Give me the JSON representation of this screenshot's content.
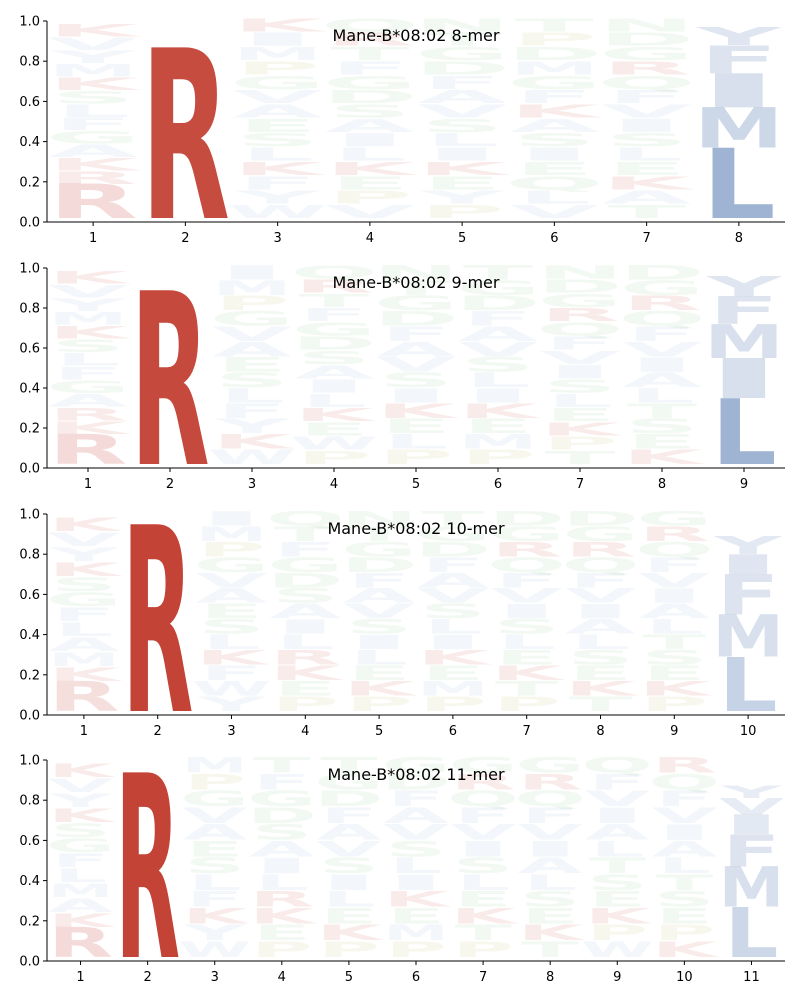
{
  "chart_data": [
    {
      "type": "sequence-logo",
      "title": "Mane-B*08:02 8-mer",
      "ylim": [
        0,
        1
      ],
      "yticks": [
        "0.0",
        "0.2",
        "0.4",
        "0.6",
        "0.8",
        "1.0"
      ],
      "positions": [
        "1",
        "2",
        "3",
        "4",
        "5",
        "6",
        "7",
        "8"
      ],
      "columns": [
        {
          "total": 0.97,
          "strong": [
            {
              "letter": "R",
              "value": 0.17,
              "alpha": 0.18
            }
          ],
          "faint": [
            "R",
            "K",
            "A",
            "G",
            "F",
            "L",
            "S",
            "K",
            "M",
            "Y",
            "V",
            "K"
          ]
        },
        {
          "total": 0.85,
          "strong": [
            {
              "letter": "R",
              "value": 0.85,
              "alpha": 0.9
            }
          ],
          "faint": []
        },
        {
          "total": 1.0,
          "strong": [],
          "faint": [
            "W",
            "Y",
            "F",
            "K",
            "L",
            "S",
            "E",
            "A",
            "V",
            "G",
            "P",
            "M",
            "I",
            "K"
          ]
        },
        {
          "total": 1.0,
          "strong": [],
          "faint": [
            "V",
            "P",
            "E",
            "K",
            "L",
            "I",
            "A",
            "S",
            "D",
            "G",
            "F",
            "T",
            "R",
            "Q"
          ]
        },
        {
          "total": 1.0,
          "strong": [],
          "faint": [
            "P",
            "Y",
            "E",
            "K",
            "I",
            "L",
            "S",
            "V",
            "A",
            "F",
            "D",
            "G",
            "T",
            "N"
          ]
        },
        {
          "total": 1.0,
          "strong": [],
          "faint": [
            "V",
            "L",
            "Q",
            "E",
            "I",
            "S",
            "A",
            "K",
            "F",
            "G",
            "M",
            "D",
            "P",
            "T"
          ]
        },
        {
          "total": 1.0,
          "strong": [],
          "faint": [
            "T",
            "A",
            "K",
            "E",
            "L",
            "S",
            "I",
            "V",
            "F",
            "Q",
            "R",
            "G",
            "D",
            "N"
          ]
        },
        {
          "total": 0.95,
          "strong": [
            {
              "letter": "L",
              "value": 0.35,
              "alpha": 0.85
            },
            {
              "letter": "M",
              "value": 0.2,
              "alpha": 0.45
            },
            {
              "letter": "I",
              "value": 0.17,
              "alpha": 0.35
            },
            {
              "letter": "F",
              "value": 0.14,
              "alpha": 0.3
            },
            {
              "letter": "Y",
              "value": 0.09,
              "alpha": 0.28
            }
          ],
          "faint": []
        }
      ]
    },
    {
      "type": "sequence-logo",
      "title": "Mane-B*08:02 9-mer",
      "ylim": [
        0,
        1
      ],
      "yticks": [
        "0.0",
        "0.2",
        "0.4",
        "0.6",
        "0.8",
        "1.0"
      ],
      "positions": [
        "1",
        "2",
        "3",
        "4",
        "5",
        "6",
        "7",
        "8",
        "9"
      ],
      "columns": [
        {
          "total": 0.97,
          "strong": [
            {
              "letter": "R",
              "value": 0.15,
              "alpha": 0.18
            }
          ],
          "faint": [
            "K",
            "R",
            "A",
            "G",
            "F",
            "L",
            "S",
            "K",
            "M",
            "Y",
            "V",
            "K"
          ]
        },
        {
          "total": 0.87,
          "strong": [
            {
              "letter": "R",
              "value": 0.87,
              "alpha": 0.92
            }
          ],
          "faint": []
        },
        {
          "total": 1.0,
          "strong": [],
          "faint": [
            "W",
            "K",
            "Y",
            "F",
            "L",
            "S",
            "E",
            "A",
            "V",
            "G",
            "P",
            "M",
            "I"
          ]
        },
        {
          "total": 1.0,
          "strong": [],
          "faint": [
            "P",
            "W",
            "E",
            "K",
            "L",
            "I",
            "A",
            "S",
            "D",
            "G",
            "F",
            "T",
            "R",
            "Q"
          ]
        },
        {
          "total": 1.0,
          "strong": [],
          "faint": [
            "P",
            "L",
            "E",
            "K",
            "I",
            "S",
            "V",
            "A",
            "F",
            "D",
            "G",
            "T",
            "N"
          ]
        },
        {
          "total": 1.0,
          "strong": [],
          "faint": [
            "P",
            "M",
            "E",
            "K",
            "I",
            "L",
            "S",
            "V",
            "A",
            "F",
            "D",
            "G",
            "T"
          ]
        },
        {
          "total": 1.0,
          "strong": [],
          "faint": [
            "T",
            "P",
            "K",
            "E",
            "L",
            "S",
            "I",
            "V",
            "F",
            "Q",
            "R",
            "G",
            "D",
            "N"
          ]
        },
        {
          "total": 1.0,
          "strong": [],
          "faint": [
            "K",
            "E",
            "S",
            "T",
            "L",
            "A",
            "I",
            "V",
            "F",
            "Q",
            "R",
            "G",
            "D"
          ]
        },
        {
          "total": 0.97,
          "strong": [
            {
              "letter": "L",
              "value": 0.33,
              "alpha": 0.85
            },
            {
              "letter": "I",
              "value": 0.2,
              "alpha": 0.35
            },
            {
              "letter": "M",
              "value": 0.17,
              "alpha": 0.35
            },
            {
              "letter": "F",
              "value": 0.14,
              "alpha": 0.3
            },
            {
              "letter": "Y",
              "value": 0.1,
              "alpha": 0.28
            }
          ],
          "faint": []
        }
      ]
    },
    {
      "type": "sequence-logo",
      "title": "Mane-B*08:02 10-mer",
      "ylim": [
        0,
        1
      ],
      "yticks": [
        "0.0",
        "0.2",
        "0.4",
        "0.6",
        "0.8",
        "1.0"
      ],
      "positions": [
        "1",
        "2",
        "3",
        "4",
        "5",
        "6",
        "7",
        "8",
        "9",
        "10"
      ],
      "columns": [
        {
          "total": 0.97,
          "strong": [
            {
              "letter": "R",
              "value": 0.15,
              "alpha": 0.16
            }
          ],
          "faint": [
            "K",
            "M",
            "A",
            "L",
            "F",
            "G",
            "S",
            "K",
            "Y",
            "V",
            "K"
          ]
        },
        {
          "total": 0.93,
          "strong": [
            {
              "letter": "R",
              "value": 0.93,
              "alpha": 0.95
            }
          ],
          "faint": []
        },
        {
          "total": 1.0,
          "strong": [],
          "faint": [
            "Y",
            "W",
            "F",
            "K",
            "L",
            "S",
            "E",
            "A",
            "V",
            "G",
            "P",
            "M",
            "I"
          ]
        },
        {
          "total": 1.0,
          "strong": [],
          "faint": [
            "P",
            "E",
            "K",
            "R",
            "L",
            "I",
            "A",
            "S",
            "D",
            "G",
            "F",
            "T",
            "Q"
          ]
        },
        {
          "total": 1.0,
          "strong": [],
          "faint": [
            "P",
            "K",
            "E",
            "L",
            "I",
            "S",
            "V",
            "A",
            "F",
            "D",
            "G",
            "T",
            "N"
          ]
        },
        {
          "total": 1.0,
          "strong": [],
          "faint": [
            "P",
            "M",
            "E",
            "K",
            "I",
            "L",
            "S",
            "V",
            "A",
            "F",
            "D",
            "G",
            "T"
          ]
        },
        {
          "total": 1.0,
          "strong": [],
          "faint": [
            "P",
            "T",
            "K",
            "E",
            "L",
            "S",
            "I",
            "V",
            "F",
            "Q",
            "R",
            "G",
            "D"
          ]
        },
        {
          "total": 1.0,
          "strong": [],
          "faint": [
            "T",
            "K",
            "E",
            "S",
            "L",
            "A",
            "I",
            "V",
            "F",
            "Q",
            "R",
            "G",
            "D"
          ]
        },
        {
          "total": 1.0,
          "strong": [],
          "faint": [
            "P",
            "K",
            "E",
            "S",
            "T",
            "L",
            "A",
            "I",
            "V",
            "F",
            "Q",
            "R",
            "G"
          ]
        },
        {
          "total": 0.97,
          "strong": [
            {
              "letter": "L",
              "value": 0.27,
              "alpha": 0.5
            },
            {
              "letter": "M",
              "value": 0.21,
              "alpha": 0.35
            },
            {
              "letter": "F",
              "value": 0.2,
              "alpha": 0.3
            },
            {
              "letter": "I",
              "value": 0.1,
              "alpha": 0.28
            },
            {
              "letter": "Y",
              "value": 0.09,
              "alpha": 0.25
            }
          ],
          "faint": []
        }
      ]
    },
    {
      "type": "sequence-logo",
      "title": "Mane-B*08:02 11-mer",
      "ylim": [
        0,
        1
      ],
      "yticks": [
        "0.0",
        "0.2",
        "0.4",
        "0.6",
        "0.8",
        "1.0"
      ],
      "positions": [
        "1",
        "2",
        "3",
        "4",
        "5",
        "6",
        "7",
        "8",
        "9",
        "10",
        "11"
      ],
      "columns": [
        {
          "total": 0.97,
          "strong": [
            {
              "letter": "R",
              "value": 0.15,
              "alpha": 0.18
            }
          ],
          "faint": [
            "K",
            "A",
            "M",
            "L",
            "F",
            "G",
            "S",
            "K",
            "Y",
            "V",
            "K"
          ]
        },
        {
          "total": 0.92,
          "strong": [
            {
              "letter": "R",
              "value": 0.92,
              "alpha": 0.95
            }
          ],
          "faint": []
        },
        {
          "total": 1.0,
          "strong": [],
          "faint": [
            "W",
            "Y",
            "K",
            "F",
            "L",
            "S",
            "E",
            "A",
            "V",
            "G",
            "P",
            "M"
          ]
        },
        {
          "total": 1.0,
          "strong": [],
          "faint": [
            "P",
            "E",
            "K",
            "R",
            "L",
            "I",
            "A",
            "S",
            "D",
            "G",
            "F",
            "T"
          ]
        },
        {
          "total": 1.0,
          "strong": [],
          "faint": [
            "P",
            "K",
            "E",
            "L",
            "I",
            "S",
            "V",
            "A",
            "F",
            "D",
            "G",
            "T"
          ]
        },
        {
          "total": 1.0,
          "strong": [],
          "faint": [
            "P",
            "M",
            "E",
            "K",
            "I",
            "L",
            "S",
            "V",
            "A",
            "F",
            "D",
            "G"
          ]
        },
        {
          "total": 1.0,
          "strong": [],
          "faint": [
            "P",
            "T",
            "K",
            "E",
            "L",
            "S",
            "I",
            "V",
            "F",
            "Q",
            "R",
            "G"
          ]
        },
        {
          "total": 1.0,
          "strong": [],
          "faint": [
            "T",
            "K",
            "E",
            "S",
            "L",
            "A",
            "I",
            "V",
            "F",
            "Q",
            "R",
            "G"
          ]
        },
        {
          "total": 1.0,
          "strong": [],
          "faint": [
            "W",
            "P",
            "K",
            "E",
            "S",
            "T",
            "L",
            "A",
            "I",
            "V",
            "F",
            "Q"
          ]
        },
        {
          "total": 1.0,
          "strong": [],
          "faint": [
            "K",
            "P",
            "E",
            "S",
            "T",
            "L",
            "A",
            "I",
            "V",
            "F",
            "Q",
            "R"
          ]
        },
        {
          "total": 0.96,
          "strong": [
            {
              "letter": "L",
              "value": 0.25,
              "alpha": 0.45
            },
            {
              "letter": "M",
              "value": 0.2,
              "alpha": 0.35
            },
            {
              "letter": "F",
              "value": 0.16,
              "alpha": 0.3
            },
            {
              "letter": "I",
              "value": 0.1,
              "alpha": 0.25
            },
            {
              "letter": "V",
              "value": 0.08,
              "alpha": 0.22
            },
            {
              "letter": "Y",
              "value": 0.06,
              "alpha": 0.2
            }
          ],
          "faint": []
        }
      ]
    }
  ],
  "colors": {
    "R": "#c0392b",
    "K": "#c0392b",
    "H": "#c0392b",
    "L": "#8ea6cb",
    "I": "#8ea6cb",
    "V": "#8ea6cb",
    "M": "#8ea6cb",
    "F": "#8ea6cb",
    "W": "#8ea6cb",
    "Y": "#8ea6cb",
    "A": "#8ea6cb",
    "D": "#7fbf7f",
    "E": "#7fbf7f",
    "G": "#7fbf7f",
    "N": "#7fbf7f",
    "Q": "#7fbf7f",
    "S": "#7fbf7f",
    "T": "#7fbf7f",
    "P": "#b8b05a",
    "C": "#b8b05a"
  }
}
